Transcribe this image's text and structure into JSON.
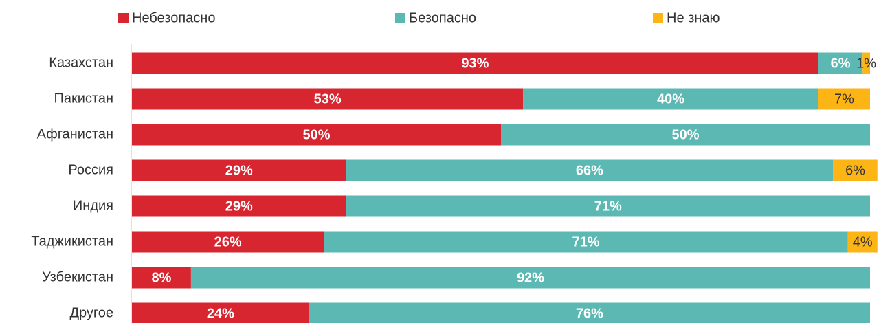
{
  "chart_data": {
    "type": "stacked-bar-horizontal",
    "categories": [
      "Казахстан",
      "Пакистан",
      "Афганистан",
      "Россия",
      "Индия",
      "Таджикистан",
      "Узбекистан",
      "Другое"
    ],
    "xlim": [
      0,
      100
    ],
    "series": [
      {
        "name": "Небезопасно",
        "color": "#d7262f",
        "values": [
          93,
          53,
          50,
          29,
          29,
          26,
          8,
          24
        ],
        "value_labels": [
          "93%",
          "53%",
          "50%",
          "29%",
          "29%",
          "26%",
          "8%",
          "24%"
        ]
      },
      {
        "name": "Безопасно",
        "color": "#5cb8b2",
        "values": [
          6,
          40,
          50,
          66,
          71,
          71,
          92,
          76
        ],
        "value_labels": [
          "6%",
          "40%",
          "50%",
          "66%",
          "71%",
          "71%",
          "92%",
          "76%"
        ]
      },
      {
        "name": "Не знаю",
        "color": "#fdb515",
        "values": [
          1,
          7,
          0,
          6,
          0,
          4,
          0,
          0
        ],
        "value_labels": [
          "1%",
          "7%",
          null,
          "6%",
          null,
          "4%",
          null,
          null
        ]
      }
    ],
    "legend": "top"
  }
}
